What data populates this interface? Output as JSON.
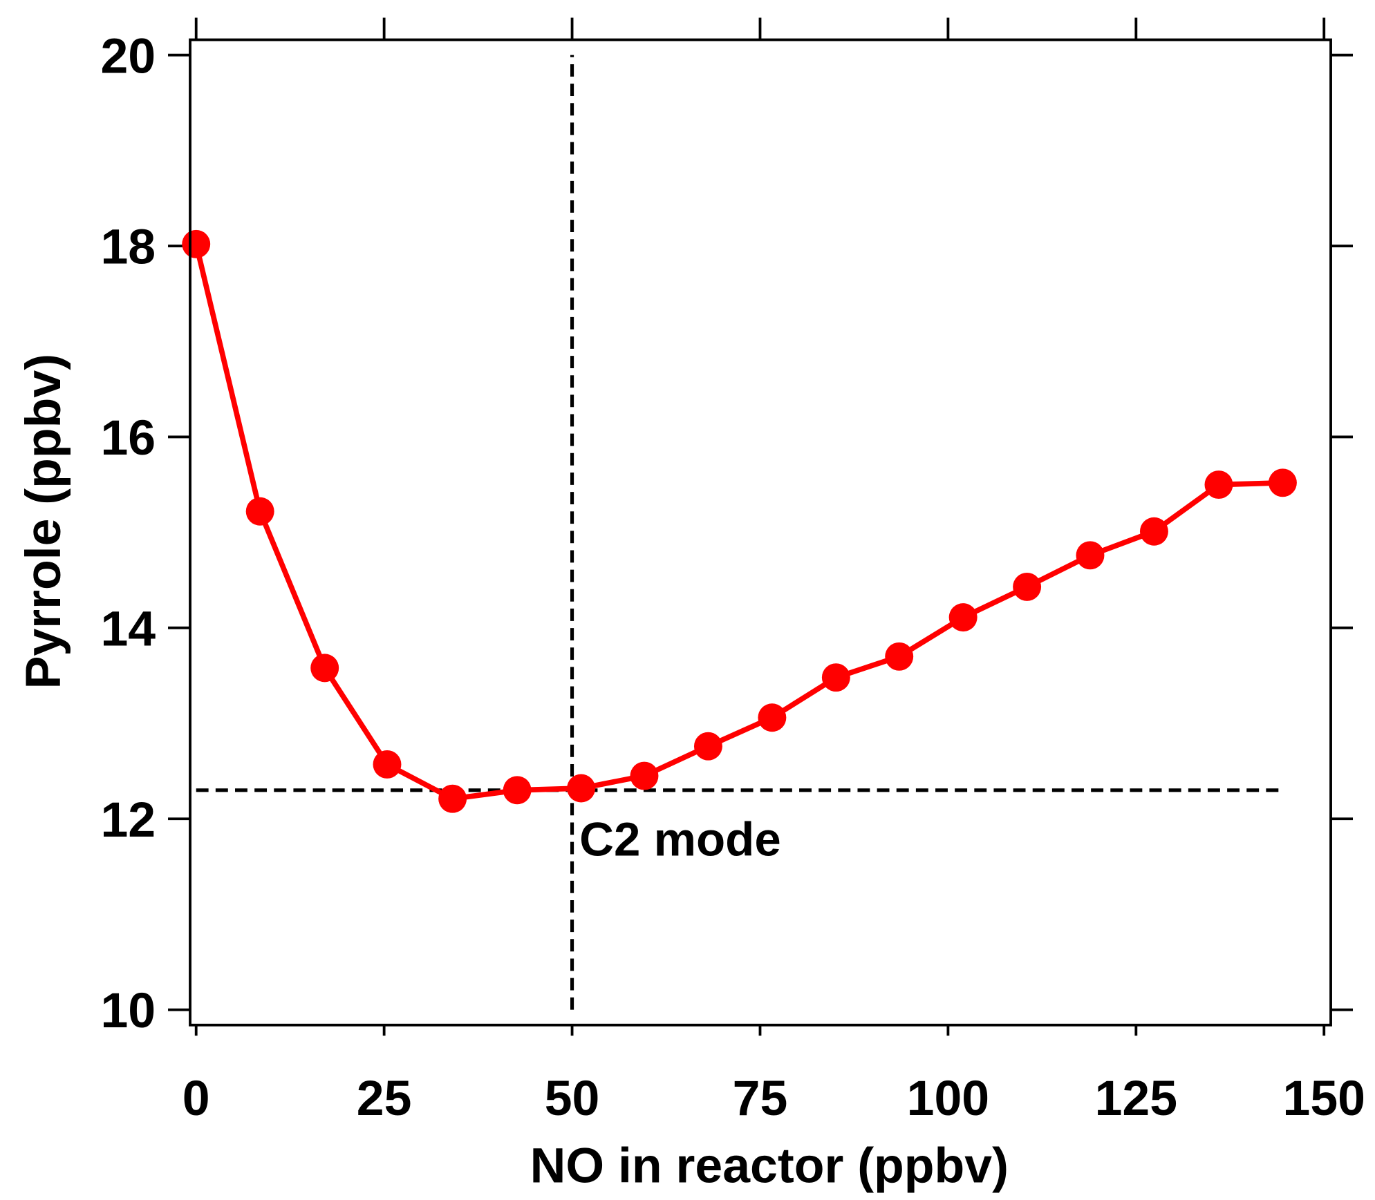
{
  "chart_data": {
    "type": "line",
    "title": "",
    "xlabel": "NO in reactor (ppbv)",
    "ylabel": "Pyrrole (ppbv)",
    "xlim": [
      -0.8,
      150.9
    ],
    "ylim": [
      9.84,
      20.16
    ],
    "xticks": [
      0,
      25,
      50,
      75,
      100,
      125,
      150
    ],
    "yticks": [
      10,
      12,
      14,
      16,
      18,
      20
    ],
    "xtick_labels": [
      "0",
      "25",
      "50",
      "75",
      "100",
      "125",
      "150"
    ],
    "ytick_labels": [
      "10",
      "12",
      "14",
      "16",
      "18",
      "20"
    ],
    "grid": false,
    "series": [
      {
        "name": "Pyrrole",
        "color": "#ff0000",
        "marker": "circle",
        "x": [
          0,
          8.5,
          17.1,
          25.4,
          34.1,
          42.7,
          51.2,
          59.6,
          68.1,
          76.6,
          85.1,
          93.5,
          102.0,
          110.5,
          118.9,
          127.4,
          136.0,
          144.5
        ],
        "y": [
          18.02,
          15.22,
          13.58,
          12.57,
          12.21,
          12.3,
          12.32,
          12.45,
          12.76,
          13.06,
          13.48,
          13.7,
          14.11,
          14.43,
          14.76,
          15.01,
          15.5,
          15.52
        ]
      }
    ],
    "reference_lines": [
      {
        "orientation": "horizontal",
        "value": 12.3,
        "from": 0,
        "to": 144.5,
        "style": "dashed",
        "color": "#000000"
      },
      {
        "orientation": "vertical",
        "value": 50,
        "from": 10,
        "to": 20,
        "style": "dashed",
        "color": "#000000"
      }
    ],
    "annotations": [
      {
        "text": "C2 mode",
        "x": 50.5,
        "y": 11.8
      }
    ]
  }
}
